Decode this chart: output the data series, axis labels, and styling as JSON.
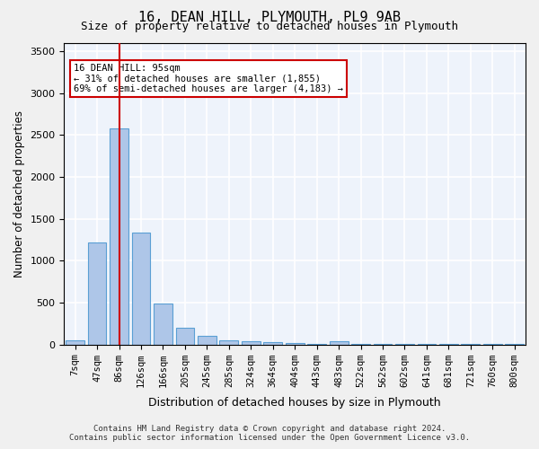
{
  "title": "16, DEAN HILL, PLYMOUTH, PL9 9AB",
  "subtitle": "Size of property relative to detached houses in Plymouth",
  "xlabel": "Distribution of detached houses by size in Plymouth",
  "ylabel": "Number of detached properties",
  "bar_color": "#aec6e8",
  "bar_edge_color": "#5a9fd4",
  "background_color": "#eef3fb",
  "grid_color": "#ffffff",
  "categories": [
    "7sqm",
    "47sqm",
    "86sqm",
    "126sqm",
    "166sqm",
    "205sqm",
    "245sqm",
    "285sqm",
    "324sqm",
    "364sqm",
    "404sqm",
    "443sqm",
    "483sqm",
    "522sqm",
    "562sqm",
    "602sqm",
    "641sqm",
    "681sqm",
    "721sqm",
    "760sqm",
    "800sqm"
  ],
  "values": [
    50,
    1220,
    2580,
    1330,
    490,
    195,
    100,
    55,
    40,
    25,
    15,
    10,
    40,
    5,
    5,
    5,
    5,
    5,
    5,
    5,
    5
  ],
  "ylim": [
    0,
    3600
  ],
  "yticks": [
    0,
    500,
    1000,
    1500,
    2000,
    2500,
    3000,
    3500
  ],
  "vline_x": 2,
  "vline_color": "#cc0000",
  "annotation_text": "16 DEAN HILL: 95sqm\n← 31% of detached houses are smaller (1,855)\n69% of semi-detached houses are larger (4,183) →",
  "annotation_box_color": "#cc0000",
  "footer_line1": "Contains HM Land Registry data © Crown copyright and database right 2024.",
  "footer_line2": "Contains public sector information licensed under the Open Government Licence v3.0."
}
